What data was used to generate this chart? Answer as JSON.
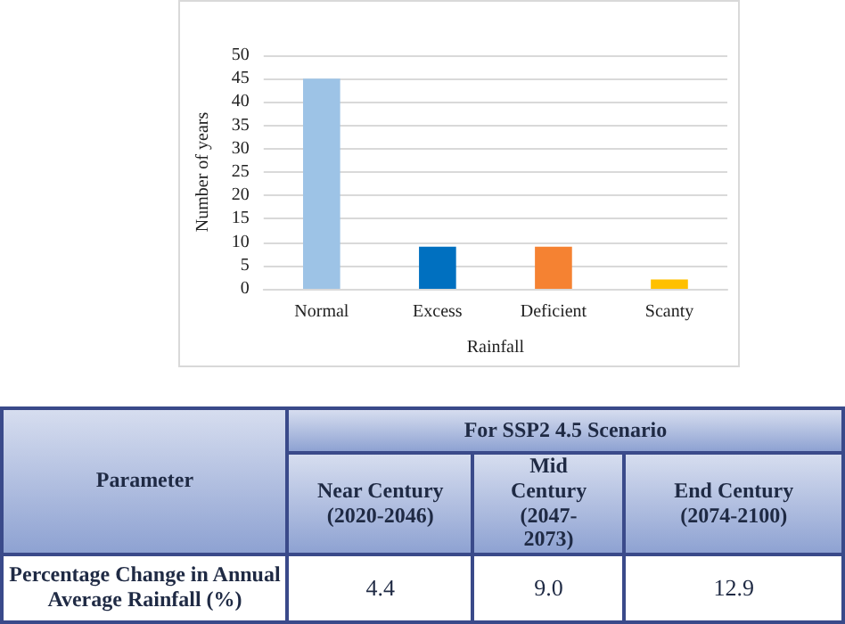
{
  "chart_data": [
    {
      "type": "bar",
      "xlabel": "Rainfall",
      "ylabel": "Number of years",
      "categories": [
        "Normal",
        "Excess",
        "Deficient",
        "Scanty"
      ],
      "values": [
        45,
        9,
        9,
        2
      ],
      "colors": [
        "#9dc3e6",
        "#0070c0",
        "#f58232",
        "#ffc000"
      ],
      "ylim": [
        0,
        50
      ],
      "yticks": [
        0,
        5,
        10,
        15,
        20,
        25,
        30,
        35,
        40,
        45,
        50
      ],
      "grid": "y"
    },
    {
      "type": "other",
      "annotations": [
        "Parameter",
        "For SSP2 4.5 Scenario",
        "Near Century (2020-2046)",
        "Mid Century (2047-2073)",
        "End Century (2074-2100)",
        "Percentage Change in Annual Average Rainfall (%)",
        "4.4",
        "9.0",
        "12.9"
      ]
    }
  ]
}
